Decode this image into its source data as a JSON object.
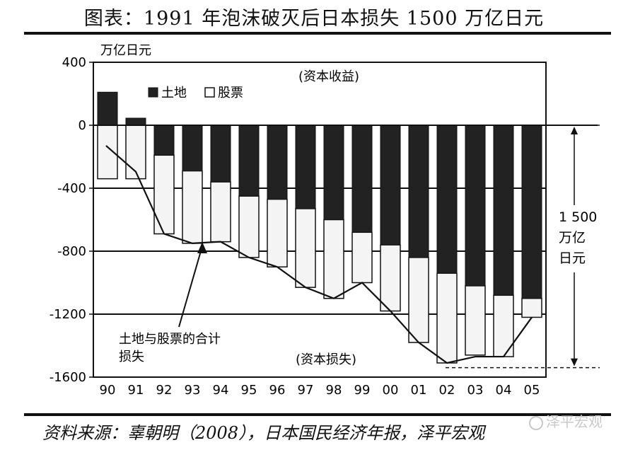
{
  "header": {
    "title": "图表：1991 年泡沫破灭后日本损失 1500 万亿日元"
  },
  "footer": {
    "source": "资料来源：辜朝明（2008），日本国民经济年报，泽平宏观",
    "watermark": "泽平宏观"
  },
  "chart_data": {
    "type": "bar",
    "unit_label": "万亿日元",
    "categories": [
      "90",
      "91",
      "92",
      "93",
      "94",
      "95",
      "96",
      "97",
      "98",
      "99",
      "00",
      "01",
      "02",
      "03",
      "04",
      "05"
    ],
    "series": [
      {
        "name": "土地",
        "values": [
          210,
          45,
          -190,
          -290,
          -360,
          -450,
          -470,
          -530,
          -600,
          -680,
          -760,
          -840,
          -940,
          -1020,
          -1080,
          -1100
        ],
        "color": "#222222"
      },
      {
        "name": "股票",
        "values": [
          -340,
          -340,
          -500,
          -460,
          -380,
          -390,
          -430,
          -500,
          -500,
          -320,
          -420,
          -540,
          -570,
          -440,
          -390,
          -120
        ],
        "color": "#f4f4f4"
      }
    ],
    "total_line": {
      "label_lines": [
        "土地与股票的合计",
        "损失"
      ],
      "values": [
        -130,
        -295,
        -690,
        -750,
        -740,
        -840,
        -900,
        -1030,
        -1100,
        -1000,
        -1180,
        -1380,
        -1510,
        -1470,
        -1470,
        -1220
      ]
    },
    "yticks": [
      400,
      0,
      -400,
      -800,
      -1200,
      -1600
    ],
    "yticklabels": [
      "400",
      "0",
      "-400",
      "-800",
      "-1200",
      "-1600"
    ],
    "ylim": [
      -1600,
      400
    ],
    "reference_lines": [
      -400,
      -800,
      -1200
    ],
    "annotations": {
      "gain": "(资本收益)",
      "loss": "(资本损失)",
      "span_label_lines": [
        "1 500",
        "万亿",
        "日元"
      ],
      "span_from": 0,
      "span_to": -1540
    },
    "legend_position": "top-left"
  }
}
